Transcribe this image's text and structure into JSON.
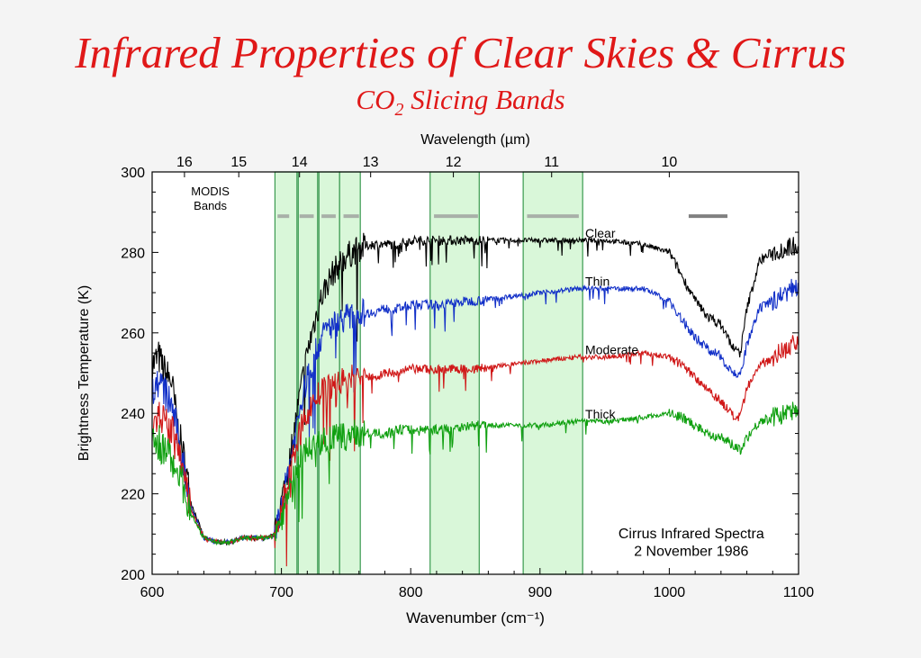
{
  "page": {
    "title": "Infrared Properties of Clear Skies & Cirrus",
    "subtitle_main": "CO",
    "subtitle_sub": "2",
    "subtitle_rest": " Slicing Bands"
  },
  "colors": {
    "background": "#f4f4f4",
    "title": "#e01818",
    "band_fill": "#d9f7d9",
    "band_stroke": "#3a9a50",
    "modis_bar": "#a8b0a8",
    "modis_bar_dark": "#808080"
  },
  "chart_data": {
    "type": "line",
    "title": "",
    "xlabel": "Wavenumber (cm⁻¹)",
    "ylabel": "Brightness Temperature (K)",
    "top_xlabel": "Wavelength (µm)",
    "xlim": [
      600,
      1100
    ],
    "ylim": [
      200,
      300
    ],
    "xticks": [
      600,
      700,
      800,
      900,
      1000,
      1100
    ],
    "yticks": [
      200,
      220,
      240,
      260,
      280,
      300
    ],
    "top_ticks": [
      {
        "label": "16",
        "wavenumber": 625
      },
      {
        "label": "15",
        "wavenumber": 667
      },
      {
        "label": "14",
        "wavenumber": 714
      },
      {
        "label": "13",
        "wavenumber": 769
      },
      {
        "label": "12",
        "wavenumber": 833
      },
      {
        "label": "11",
        "wavenumber": 909
      },
      {
        "label": "10",
        "wavenumber": 1000
      }
    ],
    "grid": false,
    "legend": "inline labels at right",
    "annotations": {
      "modis_label": [
        "MODIS",
        "Bands"
      ],
      "caption": [
        "Cirrus Infrared Spectra",
        "2 November 1986"
      ]
    },
    "bands": [
      [
        695,
        712
      ],
      [
        713,
        728
      ],
      [
        729,
        745
      ],
      [
        745,
        761
      ],
      [
        815,
        853
      ],
      [
        887,
        933
      ]
    ],
    "modis_bars": [
      [
        697,
        706
      ],
      [
        714,
        725
      ],
      [
        731,
        742
      ],
      [
        748,
        760
      ],
      [
        818,
        852
      ],
      [
        890,
        930
      ],
      [
        1015,
        1045
      ]
    ],
    "series": [
      {
        "name": "Clear",
        "color": "#000000",
        "x": [
          600,
          605,
          610,
          615,
          620,
          625,
          630,
          640,
          650,
          660,
          670,
          680,
          690,
          695,
          700,
          705,
          710,
          715,
          720,
          725,
          730,
          735,
          740,
          745,
          750,
          755,
          760,
          770,
          780,
          790,
          800,
          820,
          850,
          900,
          930,
          950,
          980,
          1000,
          1010,
          1020,
          1030,
          1040,
          1050,
          1055,
          1060,
          1070,
          1080,
          1090,
          1100
        ],
        "y": [
          252,
          254,
          250,
          248,
          236,
          228,
          218,
          209,
          208,
          208,
          209,
          209,
          209,
          210,
          218,
          226,
          236,
          246,
          255,
          262,
          268,
          272,
          275,
          277,
          279,
          280,
          281,
          282,
          282,
          282,
          283,
          283,
          283,
          283,
          283,
          283,
          282,
          280,
          274,
          268,
          264,
          262,
          256,
          255,
          266,
          278,
          280,
          281,
          282
        ]
      },
      {
        "name": "Thin",
        "color": "#1230c8",
        "x": [
          600,
          605,
          610,
          615,
          620,
          625,
          630,
          640,
          650,
          660,
          670,
          680,
          690,
          695,
          700,
          705,
          710,
          715,
          720,
          725,
          730,
          735,
          740,
          745,
          750,
          755,
          760,
          770,
          780,
          790,
          800,
          820,
          850,
          900,
          930,
          950,
          980,
          1000,
          1010,
          1020,
          1030,
          1040,
          1050,
          1055,
          1060,
          1070,
          1080,
          1090,
          1100
        ],
        "y": [
          245,
          248,
          245,
          242,
          234,
          226,
          217,
          209,
          208,
          208,
          209,
          209,
          209,
          210,
          217,
          225,
          234,
          242,
          249,
          254,
          258,
          261,
          262,
          263,
          264,
          264,
          265,
          265,
          266,
          266,
          267,
          267,
          268,
          270,
          271,
          271,
          271,
          268,
          263,
          259,
          256,
          254,
          250,
          249,
          257,
          266,
          268,
          270,
          272
        ]
      },
      {
        "name": "Moderate",
        "color": "#d01818",
        "x": [
          600,
          605,
          610,
          615,
          620,
          625,
          630,
          640,
          650,
          660,
          670,
          680,
          690,
          695,
          700,
          705,
          710,
          715,
          720,
          725,
          730,
          735,
          740,
          745,
          750,
          755,
          760,
          770,
          780,
          790,
          800,
          820,
          850,
          900,
          930,
          950,
          980,
          1000,
          1010,
          1020,
          1030,
          1040,
          1050,
          1055,
          1060,
          1070,
          1080,
          1090,
          1100
        ],
        "y": [
          238,
          240,
          237,
          236,
          230,
          224,
          216,
          209,
          208,
          208,
          209,
          209,
          209,
          210,
          216,
          223,
          230,
          236,
          240,
          243,
          245,
          246,
          247,
          248,
          248,
          249,
          249,
          249,
          250,
          250,
          251,
          251,
          251,
          253,
          254,
          254,
          255,
          254,
          252,
          249,
          246,
          243,
          239,
          239,
          246,
          252,
          254,
          256,
          258
        ]
      },
      {
        "name": "Thick",
        "color": "#10a010",
        "x": [
          600,
          605,
          610,
          615,
          620,
          625,
          630,
          640,
          650,
          660,
          670,
          680,
          690,
          695,
          700,
          705,
          710,
          715,
          720,
          725,
          730,
          735,
          740,
          745,
          750,
          755,
          760,
          770,
          780,
          790,
          800,
          820,
          850,
          900,
          930,
          950,
          980,
          1000,
          1010,
          1020,
          1030,
          1040,
          1050,
          1055,
          1060,
          1070,
          1080,
          1090,
          1100
        ],
        "y": [
          232,
          233,
          230,
          229,
          226,
          221,
          215,
          209,
          208,
          208,
          209,
          209,
          209,
          210,
          214,
          219,
          225,
          229,
          231,
          232,
          233,
          233,
          234,
          234,
          234,
          235,
          235,
          235,
          235,
          236,
          236,
          236,
          237,
          237,
          238,
          238,
          239,
          240,
          239,
          237,
          235,
          234,
          232,
          231,
          234,
          238,
          239,
          240,
          241
        ]
      }
    ]
  }
}
